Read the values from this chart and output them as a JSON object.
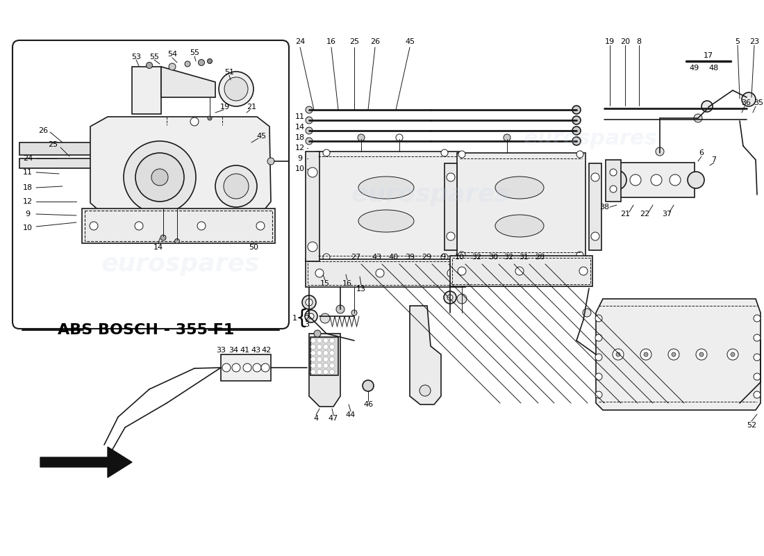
{
  "background_color": "#ffffff",
  "watermark_text": "eurospares",
  "watermark_color": "#c8d4e8",
  "watermark_alpha": 0.2,
  "abs_label": "ABS BOSCH - 355 F1",
  "abs_label_fontsize": 16,
  "line_color": "#1a1a1a",
  "text_color": "#000000",
  "fig_width": 11.0,
  "fig_height": 8.0,
  "dpi": 100
}
